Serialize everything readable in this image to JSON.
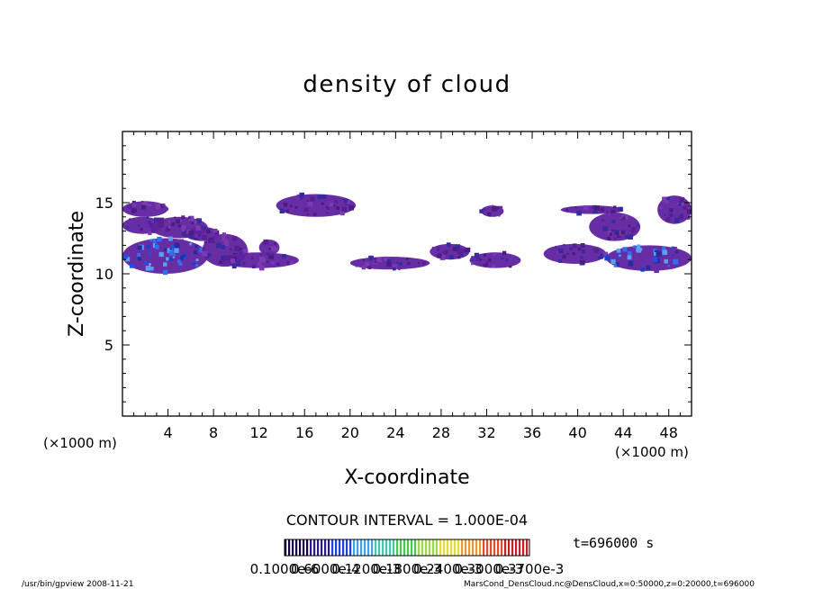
{
  "chart_data": {
    "type": "heatmap",
    "title": "density of cloud",
    "xlabel": "X-coordinate",
    "ylabel": "Z-coordinate",
    "x_unit": "(×1000 m)",
    "y_unit": "(×1000 m)",
    "xlim": [
      0,
      50
    ],
    "ylim": [
      0,
      20
    ],
    "x_ticks": [
      4,
      8,
      12,
      16,
      20,
      24,
      28,
      32,
      36,
      40,
      44,
      48
    ],
    "y_ticks": [
      5,
      10,
      15
    ],
    "contour_interval_label": "CONTOUR INTERVAL = 1.000E-04",
    "time_label": "t=696000 s",
    "colorbar_labels": [
      "0.1000e-6",
      "0.6000e-4",
      "0.1200e-3",
      "0.1800e-3",
      "0.2400e-3",
      "0.3000e-3",
      "0.3700e-3"
    ],
    "colorbar_colors": [
      "#160040",
      "#2a1a8c",
      "#2040d8",
      "#3fa0e8",
      "#40c8b0",
      "#48c850",
      "#9ad848",
      "#e8d840",
      "#e89838",
      "#e05030",
      "#c02028"
    ],
    "regions": [
      {
        "x": [
          0.0,
          4.0
        ],
        "z": [
          14.0,
          15.1
        ],
        "value": "low"
      },
      {
        "x": [
          0.0,
          3.5
        ],
        "z": [
          12.8,
          14.0
        ],
        "value": "low"
      },
      {
        "x": [
          2.5,
          7.5
        ],
        "z": [
          12.5,
          14.0
        ],
        "value": "low"
      },
      {
        "x": [
          5.5,
          8.5
        ],
        "z": [
          12.3,
          13.3
        ],
        "value": "low"
      },
      {
        "x": [
          0.0,
          7.5
        ],
        "z": [
          10.0,
          12.5
        ],
        "value": "high"
      },
      {
        "x": [
          7.0,
          11.0
        ],
        "z": [
          10.5,
          12.8
        ],
        "value": "low"
      },
      {
        "x": [
          8.5,
          15.5
        ],
        "z": [
          10.4,
          11.5
        ],
        "value": "low"
      },
      {
        "x": [
          12.0,
          13.8
        ],
        "z": [
          11.3,
          12.4
        ],
        "value": "low"
      },
      {
        "x": [
          13.5,
          20.5
        ],
        "z": [
          14.0,
          15.6
        ],
        "value": "low"
      },
      {
        "x": [
          20.0,
          27.0
        ],
        "z": [
          10.3,
          11.2
        ],
        "value": "low"
      },
      {
        "x": [
          27.0,
          30.5
        ],
        "z": [
          11.0,
          12.1
        ],
        "value": "low"
      },
      {
        "x": [
          30.5,
          35.0
        ],
        "z": [
          10.4,
          11.5
        ],
        "value": "low"
      },
      {
        "x": [
          31.5,
          33.5
        ],
        "z": [
          14.0,
          14.8
        ],
        "value": "low"
      },
      {
        "x": [
          37.0,
          42.5
        ],
        "z": [
          10.7,
          12.1
        ],
        "value": "low"
      },
      {
        "x": [
          38.5,
          44.0
        ],
        "z": [
          14.2,
          14.8
        ],
        "value": "low"
      },
      {
        "x": [
          41.0,
          45.5
        ],
        "z": [
          12.3,
          14.3
        ],
        "value": "low"
      },
      {
        "x": [
          42.5,
          50.0
        ],
        "z": [
          10.2,
          12.0
        ],
        "value": "high"
      },
      {
        "x": [
          47.0,
          50.0
        ],
        "z": [
          13.5,
          15.5
        ],
        "value": "low"
      }
    ]
  },
  "footer": {
    "left": "/usr/bin/gpview   2008-11-21",
    "right": "MarsCond_DensCloud.nc@DensCloud,x=0:50000,z=0:20000,t=696000"
  }
}
